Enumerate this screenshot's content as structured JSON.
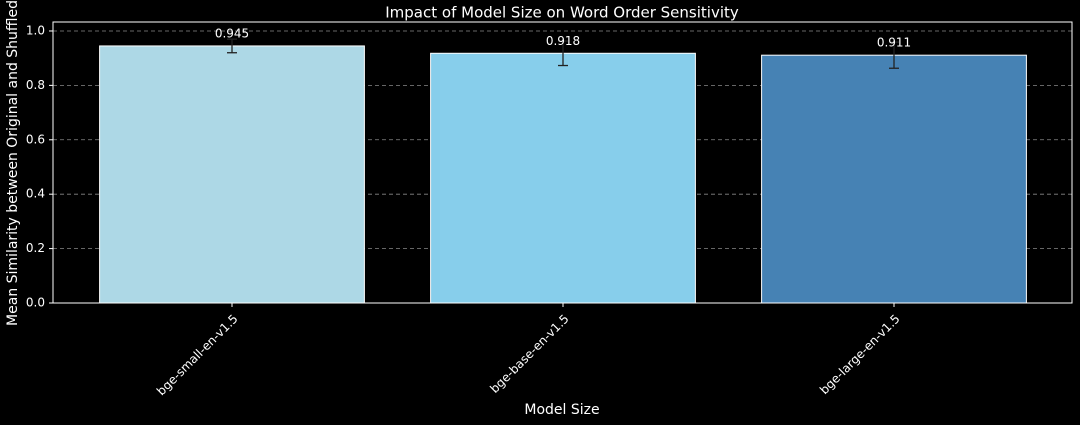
{
  "chart_data": {
    "type": "bar",
    "title": "Impact of Model Size on Word Order Sensitivity",
    "x_label": "Model Size",
    "y_label": "Mean Similarity between Original and Shuffled",
    "categories": [
      "bge-small-en-v1.5",
      "bge-base-en-v1.5",
      "bge-large-en-v1.5"
    ],
    "values": [
      0.945,
      0.918,
      0.911
    ],
    "errors": [
      0.025,
      0.045,
      0.048
    ],
    "colors": [
      "#add8e6",
      "#87ceeb",
      "#4682b4"
    ],
    "ylim": [
      0,
      1.033
    ],
    "yticks": [
      {
        "value": 0,
        "label": "0.0"
      },
      {
        "value": 0.2,
        "label": "0.2"
      },
      {
        "value": 0.4,
        "label": "0.4"
      },
      {
        "value": 0.6,
        "label": "0.6"
      },
      {
        "value": 0.8,
        "label": "0.8"
      },
      {
        "value": 1,
        "label": "1.0"
      }
    ],
    "grid": true
  }
}
